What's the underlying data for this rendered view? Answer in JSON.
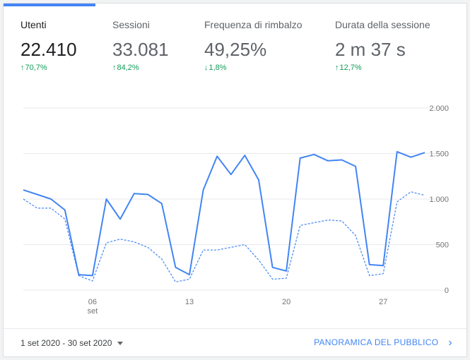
{
  "metrics": [
    {
      "label": "Utenti",
      "value": "22.410",
      "change": "70,7%",
      "direction": "up",
      "active": true
    },
    {
      "label": "Sessioni",
      "value": "33.081",
      "change": "84,2%",
      "direction": "up",
      "active": false
    },
    {
      "label": "Frequenza di rimbalzo",
      "value": "49,25%",
      "change": "1,8%",
      "direction": "down",
      "active": false
    },
    {
      "label": "Durata della sessione",
      "value": "2 m 37 s",
      "change": "12,7%",
      "direction": "up",
      "active": false
    }
  ],
  "colors": {
    "accent": "#4285f4",
    "positive": "#0f9d58",
    "grid": "#e8eaed",
    "tick_text": "#757575"
  },
  "chart_data": {
    "type": "line",
    "x": [
      "1 set",
      "2 set",
      "3 set",
      "4 set",
      "5 set",
      "6 set",
      "7 set",
      "8 set",
      "9 set",
      "10 set",
      "11 set",
      "12 set",
      "13 set",
      "14 set",
      "15 set",
      "16 set",
      "17 set",
      "18 set",
      "19 set",
      "20 set",
      "21 set",
      "22 set",
      "23 set",
      "24 set",
      "25 set",
      "26 set",
      "27 set",
      "28 set",
      "29 set",
      "30 set"
    ],
    "series": [
      {
        "style": "solid",
        "values": [
          1100,
          1050,
          1000,
          880,
          170,
          160,
          1000,
          780,
          1060,
          1050,
          950,
          250,
          170,
          1100,
          1470,
          1270,
          1480,
          1210,
          250,
          210,
          1450,
          1490,
          1420,
          1430,
          1360,
          280,
          270,
          1520,
          1460,
          1510
        ]
      },
      {
        "style": "dashed",
        "values": [
          1000,
          900,
          900,
          780,
          160,
          100,
          520,
          560,
          530,
          470,
          340,
          90,
          120,
          440,
          440,
          470,
          500,
          330,
          120,
          130,
          710,
          740,
          770,
          760,
          600,
          160,
          180,
          970,
          1080,
          1040
        ]
      }
    ],
    "x_tick_labels": [
      {
        "index": 5,
        "label": "06",
        "sublabel": "set"
      },
      {
        "index": 12,
        "label": "13",
        "sublabel": ""
      },
      {
        "index": 19,
        "label": "20",
        "sublabel": ""
      },
      {
        "index": 26,
        "label": "27",
        "sublabel": ""
      }
    ],
    "y_ticks": [
      0,
      500,
      1000,
      1500,
      2000
    ],
    "y_tick_labels": [
      "0",
      "500",
      "1.000",
      "1.500",
      "2.000"
    ],
    "ylim": [
      0,
      2000
    ],
    "grid": true,
    "legend": "none"
  },
  "footer": {
    "date_range": "1 set 2020 - 30 set 2020",
    "link_label": "PANORAMICA DEL PUBBLICO",
    "link_icon": "chevron-right-icon"
  }
}
